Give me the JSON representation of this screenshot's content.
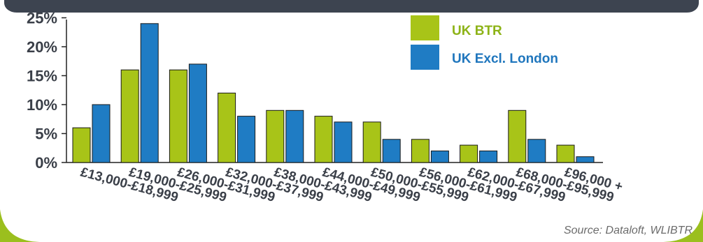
{
  "colors": {
    "header_bar": "#3d4450",
    "frame_green": "#9bbf1e",
    "series_green": "#a8c418",
    "series_blue": "#1f7cc4",
    "axis": "#222222",
    "tick_text": "#3a3f48",
    "legend_green_text": "#8db317",
    "legend_blue_text": "#1f76bd"
  },
  "chart_data": {
    "type": "bar",
    "categories": [
      "£13,000-£18,999",
      "£19,000-£25,999",
      "£26,000-£31,999",
      "£32,000-£37,999",
      "£38,000-£43,999",
      "£44,000-£49,999",
      "£50,000-£55,999",
      "£56,000-£61,999",
      "£62,000-£67,999",
      "£68,000-£95,999",
      "£96,000 +"
    ],
    "series": [
      {
        "name": "UK BTR",
        "values": [
          6,
          16,
          16,
          12,
          9,
          8,
          7,
          4,
          3,
          9,
          3
        ]
      },
      {
        "name": "UK Excl. London",
        "values": [
          10,
          24,
          17,
          8,
          9,
          7,
          4,
          2,
          2,
          4,
          1
        ]
      }
    ],
    "yticks": [
      "0%",
      "5%",
      "10%",
      "15%",
      "20%",
      "25%"
    ],
    "ylim": [
      0,
      25
    ],
    "legend_placement": "top-right",
    "grid": false
  },
  "source_text": "Source: Dataloft,  WLIBTR"
}
